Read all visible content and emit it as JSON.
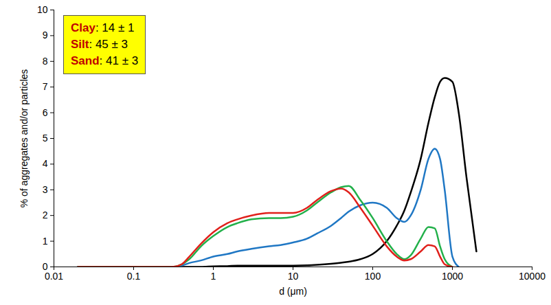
{
  "chart_data": {
    "type": "line",
    "x_label": "d (μm)",
    "y_label": "% of aggregates and/or particles",
    "log": "x",
    "annotations": [
      "Clay: 14 ± 1",
      "Silt: 45 ± 3",
      "Sand: 41 ± 3"
    ],
    "x": [
      0.02,
      0.05,
      0.1,
      0.2,
      0.3,
      0.4,
      0.5,
      0.7,
      1,
      1.5,
      2,
      3,
      5,
      7,
      10,
      15,
      20,
      30,
      40,
      50,
      70,
      100,
      150,
      200,
      250,
      300,
      400,
      500,
      600,
      700,
      800,
      1000,
      1200,
      1500,
      2000
    ],
    "series": [
      {
        "color": "#000000",
        "values": [
          0,
          0,
          0,
          0,
          0,
          0,
          0,
          0,
          0.02,
          0.03,
          0.05,
          0.05,
          0.05,
          0.05,
          0.05,
          0.06,
          0.08,
          0.12,
          0.16,
          0.2,
          0.3,
          0.5,
          1.0,
          1.6,
          2.2,
          2.9,
          4.2,
          5.6,
          6.6,
          7.2,
          7.35,
          7.2,
          6.0,
          3.5,
          0.6
        ]
      },
      {
        "color": "#1f77c4",
        "values": [
          0,
          0,
          0,
          0,
          0,
          0.05,
          0.15,
          0.25,
          0.4,
          0.5,
          0.6,
          0.7,
          0.8,
          0.85,
          0.95,
          1.1,
          1.3,
          1.6,
          1.9,
          2.15,
          2.4,
          2.5,
          2.3,
          1.9,
          1.75,
          2.0,
          3.0,
          4.2,
          4.6,
          4.2,
          3.0,
          0.4,
          0,
          null,
          null
        ]
      },
      {
        "color": "#22b04a",
        "values": [
          0,
          0,
          0,
          0,
          0,
          0.1,
          0.3,
          0.8,
          1.2,
          1.55,
          1.7,
          1.85,
          1.9,
          1.9,
          1.95,
          2.2,
          2.5,
          2.9,
          3.1,
          3.15,
          2.6,
          1.9,
          1.0,
          0.5,
          0.3,
          0.45,
          1.1,
          1.55,
          1.5,
          0.8,
          0.3,
          0,
          null,
          null,
          null
        ]
      },
      {
        "color": "#e0201b",
        "values": [
          0,
          0,
          0,
          0,
          0,
          0.1,
          0.4,
          0.9,
          1.35,
          1.7,
          1.85,
          2.0,
          2.1,
          2.1,
          2.1,
          2.3,
          2.6,
          2.95,
          3.05,
          2.9,
          2.3,
          1.6,
          0.8,
          0.4,
          0.25,
          0.3,
          0.6,
          0.85,
          0.8,
          0.4,
          0.1,
          0,
          null,
          null,
          null
        ]
      }
    ],
    "xlim": [
      0.01,
      10000
    ],
    "xticks": [
      0.01,
      0.1,
      1,
      10,
      100,
      1000,
      10000
    ],
    "ylim": [
      0,
      10
    ],
    "yticks": [
      0,
      1,
      2,
      3,
      4,
      5,
      6,
      7,
      8,
      9,
      10
    ],
    "grid": false
  }
}
